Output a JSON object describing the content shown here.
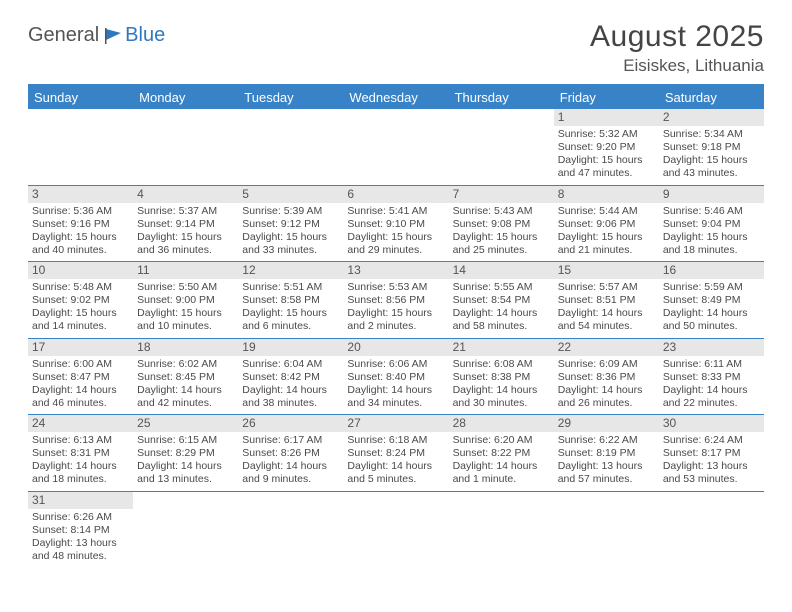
{
  "logo": {
    "part1": "General",
    "part2": "Blue"
  },
  "title": "August 2025",
  "location": "Eisiskes, Lithuania",
  "colors": {
    "header_blue": "#3883c7",
    "cell_gray": "#e7e7e7",
    "text": "#4a4a4a"
  },
  "day_labels": [
    "Sunday",
    "Monday",
    "Tuesday",
    "Wednesday",
    "Thursday",
    "Friday",
    "Saturday"
  ],
  "weeks": [
    [
      null,
      null,
      null,
      null,
      null,
      {
        "n": "1",
        "sunrise": "Sunrise: 5:32 AM",
        "sunset": "Sunset: 9:20 PM",
        "day1": "Daylight: 15 hours",
        "day2": "and 47 minutes."
      },
      {
        "n": "2",
        "sunrise": "Sunrise: 5:34 AM",
        "sunset": "Sunset: 9:18 PM",
        "day1": "Daylight: 15 hours",
        "day2": "and 43 minutes."
      }
    ],
    [
      {
        "n": "3",
        "sunrise": "Sunrise: 5:36 AM",
        "sunset": "Sunset: 9:16 PM",
        "day1": "Daylight: 15 hours",
        "day2": "and 40 minutes."
      },
      {
        "n": "4",
        "sunrise": "Sunrise: 5:37 AM",
        "sunset": "Sunset: 9:14 PM",
        "day1": "Daylight: 15 hours",
        "day2": "and 36 minutes."
      },
      {
        "n": "5",
        "sunrise": "Sunrise: 5:39 AM",
        "sunset": "Sunset: 9:12 PM",
        "day1": "Daylight: 15 hours",
        "day2": "and 33 minutes."
      },
      {
        "n": "6",
        "sunrise": "Sunrise: 5:41 AM",
        "sunset": "Sunset: 9:10 PM",
        "day1": "Daylight: 15 hours",
        "day2": "and 29 minutes."
      },
      {
        "n": "7",
        "sunrise": "Sunrise: 5:43 AM",
        "sunset": "Sunset: 9:08 PM",
        "day1": "Daylight: 15 hours",
        "day2": "and 25 minutes."
      },
      {
        "n": "8",
        "sunrise": "Sunrise: 5:44 AM",
        "sunset": "Sunset: 9:06 PM",
        "day1": "Daylight: 15 hours",
        "day2": "and 21 minutes."
      },
      {
        "n": "9",
        "sunrise": "Sunrise: 5:46 AM",
        "sunset": "Sunset: 9:04 PM",
        "day1": "Daylight: 15 hours",
        "day2": "and 18 minutes."
      }
    ],
    [
      {
        "n": "10",
        "sunrise": "Sunrise: 5:48 AM",
        "sunset": "Sunset: 9:02 PM",
        "day1": "Daylight: 15 hours",
        "day2": "and 14 minutes."
      },
      {
        "n": "11",
        "sunrise": "Sunrise: 5:50 AM",
        "sunset": "Sunset: 9:00 PM",
        "day1": "Daylight: 15 hours",
        "day2": "and 10 minutes."
      },
      {
        "n": "12",
        "sunrise": "Sunrise: 5:51 AM",
        "sunset": "Sunset: 8:58 PM",
        "day1": "Daylight: 15 hours",
        "day2": "and 6 minutes."
      },
      {
        "n": "13",
        "sunrise": "Sunrise: 5:53 AM",
        "sunset": "Sunset: 8:56 PM",
        "day1": "Daylight: 15 hours",
        "day2": "and 2 minutes."
      },
      {
        "n": "14",
        "sunrise": "Sunrise: 5:55 AM",
        "sunset": "Sunset: 8:54 PM",
        "day1": "Daylight: 14 hours",
        "day2": "and 58 minutes."
      },
      {
        "n": "15",
        "sunrise": "Sunrise: 5:57 AM",
        "sunset": "Sunset: 8:51 PM",
        "day1": "Daylight: 14 hours",
        "day2": "and 54 minutes."
      },
      {
        "n": "16",
        "sunrise": "Sunrise: 5:59 AM",
        "sunset": "Sunset: 8:49 PM",
        "day1": "Daylight: 14 hours",
        "day2": "and 50 minutes."
      }
    ],
    [
      {
        "n": "17",
        "sunrise": "Sunrise: 6:00 AM",
        "sunset": "Sunset: 8:47 PM",
        "day1": "Daylight: 14 hours",
        "day2": "and 46 minutes."
      },
      {
        "n": "18",
        "sunrise": "Sunrise: 6:02 AM",
        "sunset": "Sunset: 8:45 PM",
        "day1": "Daylight: 14 hours",
        "day2": "and 42 minutes."
      },
      {
        "n": "19",
        "sunrise": "Sunrise: 6:04 AM",
        "sunset": "Sunset: 8:42 PM",
        "day1": "Daylight: 14 hours",
        "day2": "and 38 minutes."
      },
      {
        "n": "20",
        "sunrise": "Sunrise: 6:06 AM",
        "sunset": "Sunset: 8:40 PM",
        "day1": "Daylight: 14 hours",
        "day2": "and 34 minutes."
      },
      {
        "n": "21",
        "sunrise": "Sunrise: 6:08 AM",
        "sunset": "Sunset: 8:38 PM",
        "day1": "Daylight: 14 hours",
        "day2": "and 30 minutes."
      },
      {
        "n": "22",
        "sunrise": "Sunrise: 6:09 AM",
        "sunset": "Sunset: 8:36 PM",
        "day1": "Daylight: 14 hours",
        "day2": "and 26 minutes."
      },
      {
        "n": "23",
        "sunrise": "Sunrise: 6:11 AM",
        "sunset": "Sunset: 8:33 PM",
        "day1": "Daylight: 14 hours",
        "day2": "and 22 minutes."
      }
    ],
    [
      {
        "n": "24",
        "sunrise": "Sunrise: 6:13 AM",
        "sunset": "Sunset: 8:31 PM",
        "day1": "Daylight: 14 hours",
        "day2": "and 18 minutes."
      },
      {
        "n": "25",
        "sunrise": "Sunrise: 6:15 AM",
        "sunset": "Sunset: 8:29 PM",
        "day1": "Daylight: 14 hours",
        "day2": "and 13 minutes."
      },
      {
        "n": "26",
        "sunrise": "Sunrise: 6:17 AM",
        "sunset": "Sunset: 8:26 PM",
        "day1": "Daylight: 14 hours",
        "day2": "and 9 minutes."
      },
      {
        "n": "27",
        "sunrise": "Sunrise: 6:18 AM",
        "sunset": "Sunset: 8:24 PM",
        "day1": "Daylight: 14 hours",
        "day2": "and 5 minutes."
      },
      {
        "n": "28",
        "sunrise": "Sunrise: 6:20 AM",
        "sunset": "Sunset: 8:22 PM",
        "day1": "Daylight: 14 hours",
        "day2": "and 1 minute."
      },
      {
        "n": "29",
        "sunrise": "Sunrise: 6:22 AM",
        "sunset": "Sunset: 8:19 PM",
        "day1": "Daylight: 13 hours",
        "day2": "and 57 minutes."
      },
      {
        "n": "30",
        "sunrise": "Sunrise: 6:24 AM",
        "sunset": "Sunset: 8:17 PM",
        "day1": "Daylight: 13 hours",
        "day2": "and 53 minutes."
      }
    ],
    [
      {
        "n": "31",
        "sunrise": "Sunrise: 6:26 AM",
        "sunset": "Sunset: 8:14 PM",
        "day1": "Daylight: 13 hours",
        "day2": "and 48 minutes."
      },
      null,
      null,
      null,
      null,
      null,
      null
    ]
  ]
}
